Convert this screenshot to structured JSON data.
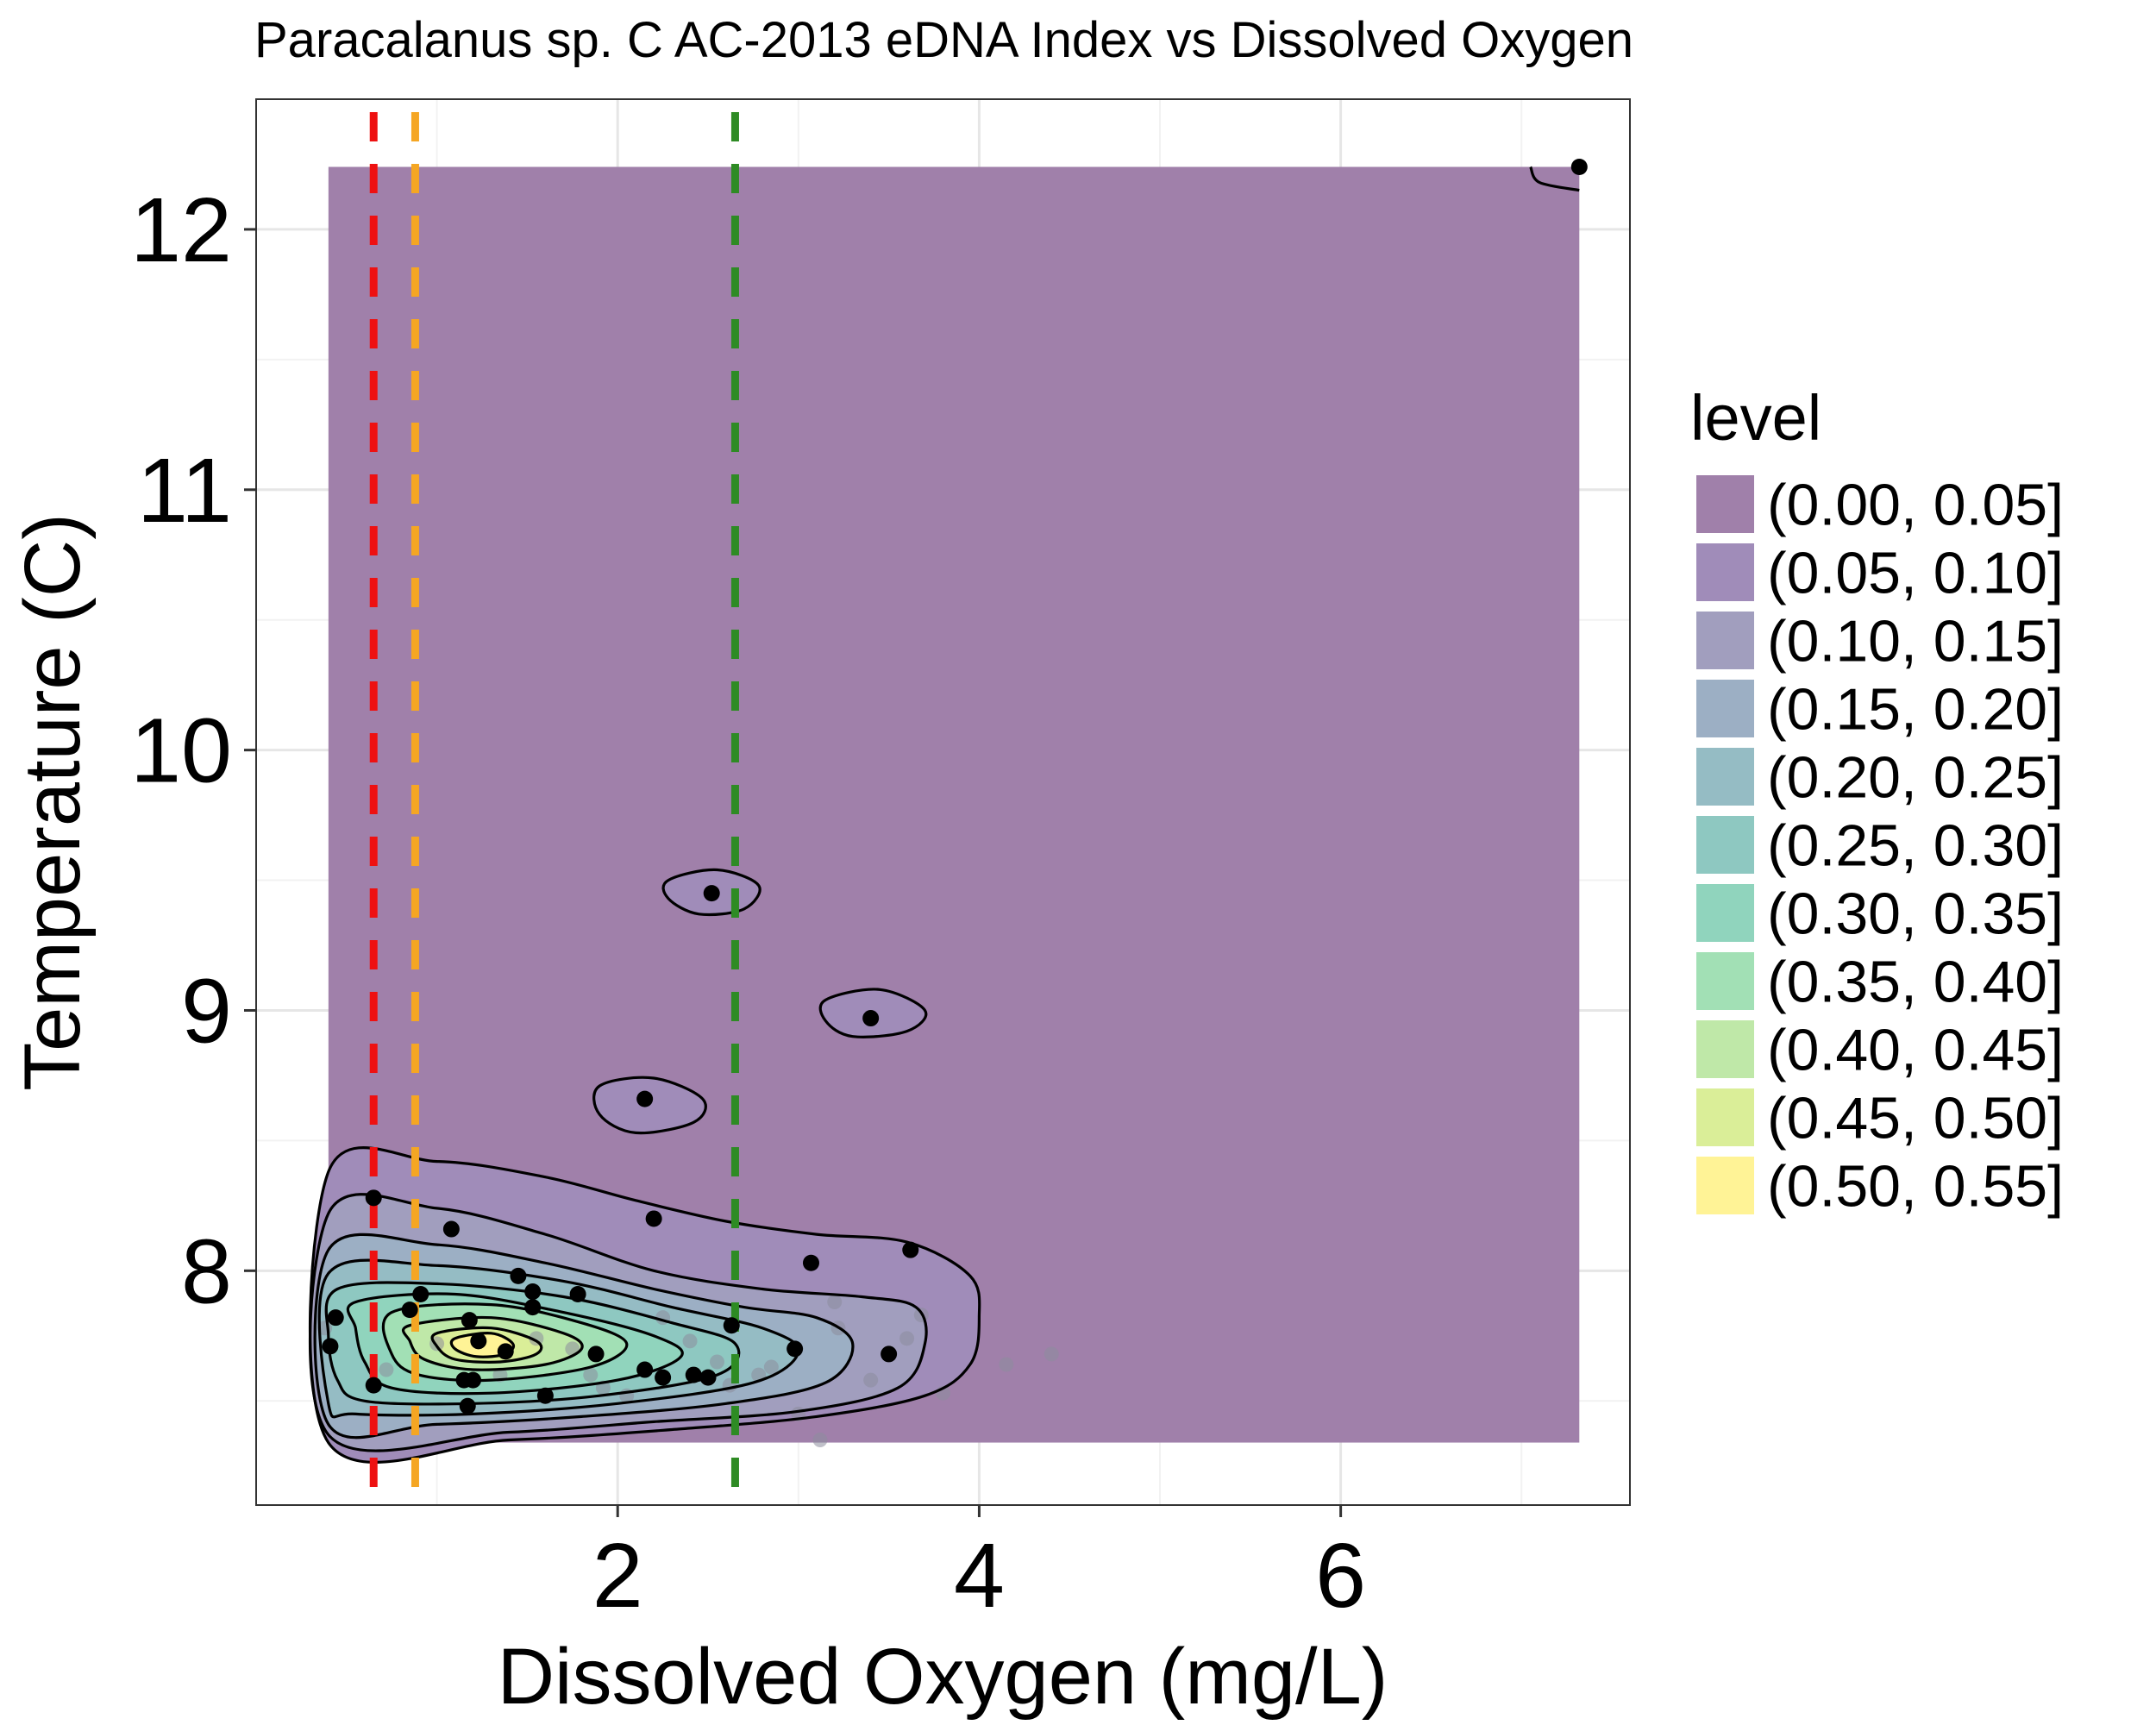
{
  "chart_data": {
    "type": "contour-scatter",
    "title": "Paracalanus sp. C AC-2013 eDNA Index vs Dissolved Oxygen",
    "xlabel": "Dissolved Oxygen (mg/L)",
    "ylabel": "Temperature (C)",
    "xlim": [
      0.0,
      7.6
    ],
    "ylim": [
      7.1,
      12.5
    ],
    "x_ticks": [
      2,
      4,
      6
    ],
    "x_tick_labels": [
      "2",
      "4",
      "6"
    ],
    "y_ticks": [
      8,
      9,
      10,
      11,
      12
    ],
    "y_tick_labels": [
      "8",
      "9",
      "10",
      "11",
      "12"
    ],
    "grid": true,
    "density_region": {
      "x": [
        0.4,
        7.32
      ],
      "y": [
        7.34,
        12.24
      ]
    },
    "reference_lines": [
      {
        "x": 0.65,
        "color": "#ee1111"
      },
      {
        "x": 0.88,
        "color": "#f5a623"
      },
      {
        "x": 2.65,
        "color": "#2e8b24"
      }
    ],
    "legend": {
      "title": "level",
      "position": "right",
      "entries": [
        {
          "label": "(0.00, 0.05]",
          "color": "#a080aa"
        },
        {
          "label": "(0.05, 0.10]",
          "color": "#a08cb9"
        },
        {
          "label": "(0.10, 0.15]",
          "color": "#a19ebe"
        },
        {
          "label": "(0.15, 0.20]",
          "color": "#9cafc4"
        },
        {
          "label": "(0.20, 0.25]",
          "color": "#95bcc4"
        },
        {
          "label": "(0.25, 0.30]",
          "color": "#8ec8c1"
        },
        {
          "label": "(0.30, 0.35]",
          "color": "#90d4bd"
        },
        {
          "label": "(0.35, 0.40]",
          "color": "#a2e0b5"
        },
        {
          "label": "(0.40, 0.45]",
          "color": "#bfe8a8"
        },
        {
          "label": "(0.45, 0.50]",
          "color": "#daee98"
        },
        {
          "label": "(0.50, 0.55]",
          "color": "#fff396"
        }
      ]
    },
    "contours": [
      [
        [
          0.4,
          8.38
        ],
        [
          1.0,
          8.42
        ],
        [
          1.6,
          8.36
        ],
        [
          2.1,
          8.27
        ],
        [
          2.6,
          8.19
        ],
        [
          3.1,
          8.14
        ],
        [
          3.6,
          8.11
        ],
        [
          3.95,
          7.98
        ],
        [
          4.0,
          7.82
        ],
        [
          3.95,
          7.64
        ],
        [
          3.7,
          7.52
        ],
        [
          3.1,
          7.44
        ],
        [
          2.3,
          7.39
        ],
        [
          1.4,
          7.35
        ],
        [
          0.4,
          7.34
        ]
      ],
      [
        [
          0.4,
          8.22
        ],
        [
          1.0,
          8.24
        ],
        [
          1.6,
          8.14
        ],
        [
          2.2,
          8.0
        ],
        [
          2.8,
          7.93
        ],
        [
          3.35,
          7.9
        ],
        [
          3.65,
          7.86
        ],
        [
          3.7,
          7.72
        ],
        [
          3.55,
          7.55
        ],
        [
          3.0,
          7.46
        ],
        [
          2.2,
          7.42
        ],
        [
          1.4,
          7.38
        ],
        [
          0.4,
          7.37
        ]
      ],
      [
        [
          0.4,
          8.08
        ],
        [
          1.0,
          8.1
        ],
        [
          1.6,
          8.03
        ],
        [
          2.2,
          7.93
        ],
        [
          2.7,
          7.86
        ],
        [
          3.1,
          7.82
        ],
        [
          3.3,
          7.72
        ],
        [
          3.15,
          7.57
        ],
        [
          2.6,
          7.49
        ],
        [
          1.8,
          7.44
        ],
        [
          1.0,
          7.41
        ],
        [
          0.4,
          7.41
        ]
      ],
      [
        [
          0.4,
          7.99
        ],
        [
          1.0,
          8.02
        ],
        [
          1.7,
          7.96
        ],
        [
          2.3,
          7.86
        ],
        [
          2.8,
          7.78
        ],
        [
          3.0,
          7.69
        ],
        [
          2.75,
          7.57
        ],
        [
          2.0,
          7.49
        ],
        [
          1.2,
          7.45
        ],
        [
          0.55,
          7.45
        ],
        [
          0.4,
          7.49
        ]
      ],
      [
        [
          0.45,
          7.93
        ],
        [
          1.0,
          7.95
        ],
        [
          1.7,
          7.9
        ],
        [
          2.3,
          7.8
        ],
        [
          2.65,
          7.72
        ],
        [
          2.55,
          7.6
        ],
        [
          1.9,
          7.52
        ],
        [
          1.2,
          7.49
        ],
        [
          0.6,
          7.5
        ],
        [
          0.45,
          7.58
        ],
        [
          0.4,
          7.75
        ]
      ],
      [
        [
          0.55,
          7.88
        ],
        [
          1.1,
          7.91
        ],
        [
          1.7,
          7.84
        ],
        [
          2.2,
          7.75
        ],
        [
          2.35,
          7.67
        ],
        [
          2.0,
          7.58
        ],
        [
          1.3,
          7.53
        ],
        [
          0.75,
          7.55
        ],
        [
          0.6,
          7.65
        ],
        [
          0.55,
          7.78
        ]
      ],
      [
        [
          0.75,
          7.84
        ],
        [
          1.3,
          7.87
        ],
        [
          1.8,
          7.8
        ],
        [
          2.05,
          7.72
        ],
        [
          1.85,
          7.63
        ],
        [
          1.3,
          7.58
        ],
        [
          0.9,
          7.6
        ],
        [
          0.75,
          7.68
        ]
      ],
      [
        [
          0.85,
          7.79
        ],
        [
          1.3,
          7.82
        ],
        [
          1.7,
          7.76
        ],
        [
          1.8,
          7.7
        ],
        [
          1.6,
          7.64
        ],
        [
          1.2,
          7.62
        ],
        [
          0.93,
          7.66
        ],
        [
          0.85,
          7.73
        ]
      ],
      [
        [
          1.0,
          7.76
        ],
        [
          1.3,
          7.78
        ],
        [
          1.55,
          7.73
        ],
        [
          1.55,
          7.68
        ],
        [
          1.35,
          7.65
        ],
        [
          1.1,
          7.66
        ],
        [
          1.0,
          7.71
        ]
      ],
      [
        [
          1.1,
          7.74
        ],
        [
          1.3,
          7.76
        ],
        [
          1.42,
          7.72
        ],
        [
          1.38,
          7.68
        ],
        [
          1.22,
          7.67
        ],
        [
          1.1,
          7.7
        ]
      ],
      [
        [
          2.28,
          9.5
        ],
        [
          2.55,
          9.54
        ],
        [
          2.78,
          9.48
        ],
        [
          2.7,
          9.39
        ],
        [
          2.45,
          9.37
        ],
        [
          2.28,
          9.43
        ]
      ],
      [
        [
          3.15,
          9.04
        ],
        [
          3.45,
          9.08
        ],
        [
          3.7,
          9.0
        ],
        [
          3.6,
          8.92
        ],
        [
          3.3,
          8.9
        ],
        [
          3.15,
          8.96
        ]
      ],
      [
        [
          1.9,
          8.71
        ],
        [
          2.2,
          8.74
        ],
        [
          2.47,
          8.66
        ],
        [
          2.42,
          8.57
        ],
        [
          2.1,
          8.53
        ],
        [
          1.9,
          8.6
        ]
      ],
      [
        [
          7.05,
          12.24
        ],
        [
          7.1,
          12.18
        ],
        [
          7.32,
          12.15
        ]
      ]
    ],
    "points_main": [
      [
        0.65,
        8.28
      ],
      [
        1.08,
        8.16
      ],
      [
        2.2,
        8.2
      ],
      [
        1.45,
        7.98
      ],
      [
        1.53,
        7.92
      ],
      [
        1.78,
        7.91
      ],
      [
        1.53,
        7.86
      ],
      [
        3.07,
        8.03
      ],
      [
        3.62,
        8.08
      ],
      [
        0.85,
        7.85
      ],
      [
        0.91,
        7.91
      ],
      [
        0.44,
        7.82
      ],
      [
        1.18,
        7.81
      ],
      [
        1.23,
        7.73
      ],
      [
        1.38,
        7.69
      ],
      [
        0.41,
        7.71
      ],
      [
        1.88,
        7.68
      ],
      [
        2.15,
        7.62
      ],
      [
        2.25,
        7.59
      ],
      [
        2.42,
        7.6
      ],
      [
        2.5,
        7.59
      ],
      [
        2.98,
        7.7
      ],
      [
        3.5,
        7.68
      ],
      [
        2.63,
        7.79
      ],
      [
        1.15,
        7.58
      ],
      [
        1.2,
        7.58
      ],
      [
        0.65,
        7.56
      ],
      [
        1.17,
        7.48
      ],
      [
        1.6,
        7.52
      ],
      [
        2.52,
        9.45
      ],
      [
        3.4,
        8.97
      ],
      [
        2.15,
        8.66
      ],
      [
        7.32,
        12.24
      ]
    ],
    "points_faint": [
      [
        0.38,
        7.78
      ],
      [
        0.72,
        7.62
      ],
      [
        1.0,
        7.72
      ],
      [
        1.35,
        7.6
      ],
      [
        1.55,
        7.74
      ],
      [
        1.75,
        7.7
      ],
      [
        1.85,
        7.6
      ],
      [
        1.92,
        7.55
      ],
      [
        2.05,
        7.52
      ],
      [
        2.25,
        7.82
      ],
      [
        2.4,
        7.73
      ],
      [
        2.55,
        7.65
      ],
      [
        2.62,
        7.56
      ],
      [
        2.78,
        7.6
      ],
      [
        2.85,
        7.63
      ],
      [
        3.0,
        7.45
      ],
      [
        3.12,
        7.35
      ],
      [
        3.2,
        7.88
      ],
      [
        3.22,
        7.78
      ],
      [
        3.4,
        7.58
      ],
      [
        3.6,
        7.74
      ],
      [
        3.68,
        7.83
      ],
      [
        3.8,
        7.53
      ],
      [
        4.15,
        7.64
      ],
      [
        4.4,
        7.68
      ]
    ]
  }
}
